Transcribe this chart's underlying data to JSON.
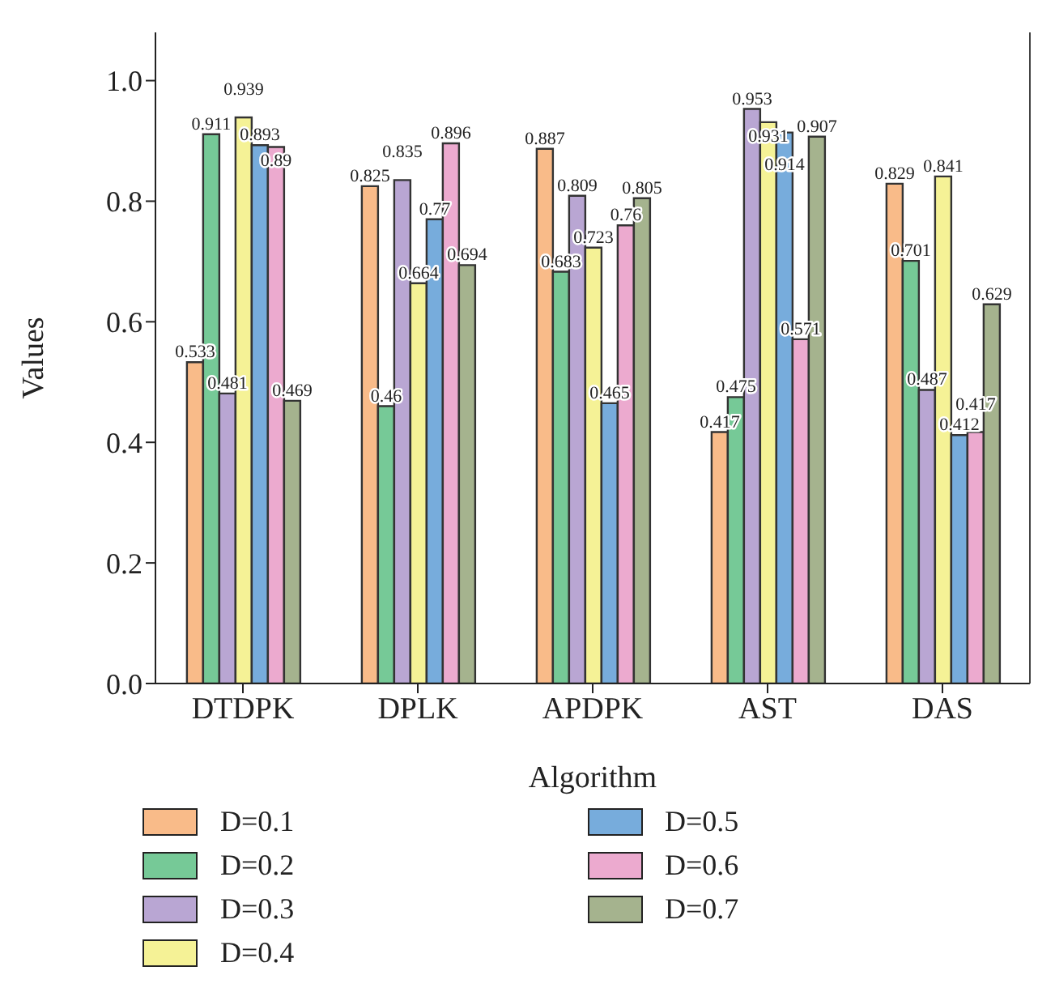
{
  "chart_data": {
    "type": "bar",
    "xlabel": "Algorithm",
    "ylabel": "Values",
    "categories": [
      "DTDPK",
      "DPLK",
      "APDPK",
      "AST",
      "DAS"
    ],
    "series": [
      {
        "name": "D=0.1",
        "color": "#f9bb89",
        "values": [
          0.533,
          0.825,
          0.887,
          0.417,
          0.829
        ]
      },
      {
        "name": "D=0.2",
        "color": "#76c997",
        "values": [
          0.911,
          0.46,
          0.683,
          0.475,
          0.701
        ]
      },
      {
        "name": "D=0.3",
        "color": "#b9a6d3",
        "values": [
          0.481,
          0.835,
          0.809,
          0.953,
          0.487
        ]
      },
      {
        "name": "D=0.4",
        "color": "#f5f296",
        "values": [
          0.939,
          0.664,
          0.723,
          0.931,
          0.841
        ]
      },
      {
        "name": "D=0.5",
        "color": "#77acdc",
        "values": [
          0.893,
          0.77,
          0.465,
          0.914,
          0.412
        ]
      },
      {
        "name": "D=0.6",
        "color": "#ecaacf",
        "values": [
          0.89,
          0.896,
          0.76,
          0.571,
          0.417
        ]
      },
      {
        "name": "D=0.7",
        "color": "#a5b38e",
        "values": [
          0.469,
          0.694,
          0.805,
          0.907,
          0.629
        ]
      }
    ],
    "ylim": [
      0,
      1.08
    ],
    "yticks": [
      {
        "value": 0,
        "label": "0.0"
      },
      0.2,
      0.4,
      0.6,
      0.8,
      {
        "value": 1,
        "label": "1.0"
      }
    ],
    "data_labels": true,
    "legend": "bottom",
    "grid": false
  }
}
